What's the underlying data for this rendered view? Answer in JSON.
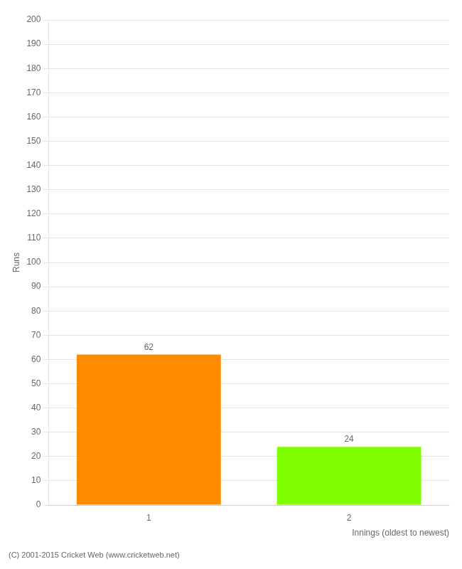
{
  "chart_data": {
    "type": "bar",
    "categories": [
      "1",
      "2"
    ],
    "values": [
      62,
      24
    ],
    "colors": [
      "#ff8c00",
      "#7fff00"
    ],
    "xlabel": "Innings (oldest to newest)",
    "ylabel": "Runs",
    "footer": "(C) 2001-2015 Cricket Web (www.cricketweb.net)",
    "ylim": [
      0,
      200
    ],
    "yticks": [
      0,
      10,
      20,
      30,
      40,
      50,
      60,
      70,
      80,
      90,
      100,
      110,
      120,
      130,
      140,
      150,
      160,
      170,
      180,
      190,
      200
    ],
    "grid": true,
    "data_labels": true
  }
}
